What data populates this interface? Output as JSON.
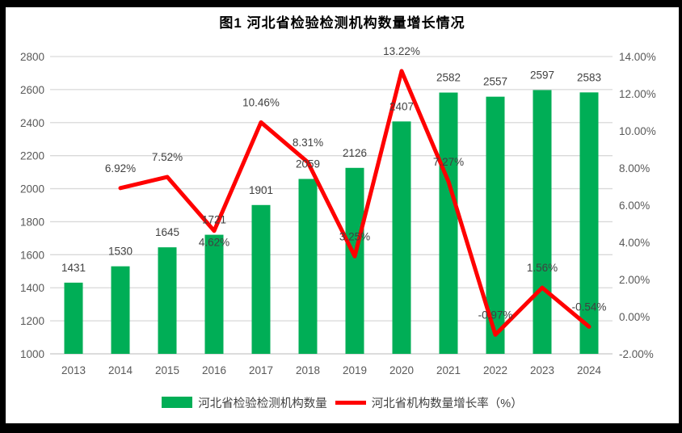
{
  "chart_data": {
    "type": "combo-bar-line",
    "title": "图1  河北省检验检测机构数量增长情况",
    "categories": [
      "2013",
      "2014",
      "2015",
      "2016",
      "2017",
      "2018",
      "2019",
      "2020",
      "2021",
      "2022",
      "2023",
      "2024"
    ],
    "series": [
      {
        "name": "河北省检验检测机构数量",
        "type": "bar",
        "axis": "left",
        "color": "#00AE56",
        "values": [
          1431,
          1530,
          1645,
          1721,
          1901,
          2059,
          2126,
          2407,
          2582,
          2557,
          2597,
          2583
        ],
        "labels": [
          "1431",
          "1530",
          "1645",
          "1721",
          "1901",
          "2059",
          "2126",
          "2407",
          "2582",
          "2557",
          "2597",
          "2583"
        ]
      },
      {
        "name": "河北省机构数量增长率（%）",
        "type": "line",
        "axis": "right",
        "color": "#FF0000",
        "values": [
          null,
          6.92,
          7.52,
          4.62,
          10.46,
          8.31,
          3.25,
          13.22,
          7.27,
          -0.97,
          1.56,
          -0.54
        ],
        "labels": [
          "",
          "6.92%",
          "7.52%",
          "4.62%",
          "10.46%",
          "8.31%",
          "3.25%",
          "13.22%",
          "7.27%",
          "-0.97%",
          "1.56%",
          "-0.54%"
        ],
        "labels_below_indices": [
          3
        ]
      }
    ],
    "left_axis": {
      "min": 1000,
      "max": 2800,
      "step": 200,
      "tick_labels": [
        "1000",
        "1200",
        "1400",
        "1600",
        "1800",
        "2000",
        "2200",
        "2400",
        "2600",
        "2800"
      ]
    },
    "right_axis": {
      "min": -2,
      "max": 14,
      "step": 2,
      "tick_labels": [
        "-2.00%",
        "0.00%",
        "2.00%",
        "4.00%",
        "6.00%",
        "8.00%",
        "10.00%",
        "12.00%",
        "14.00%"
      ]
    },
    "grid": true,
    "legend_position": "bottom",
    "colors": {
      "grid": "#D9D9D9",
      "axis_line": "#C6C6C6",
      "axis_text": "#595959",
      "data_label": "#404040",
      "title": "#000000",
      "background": "#FFFFFF",
      "frame": "#000000"
    }
  }
}
